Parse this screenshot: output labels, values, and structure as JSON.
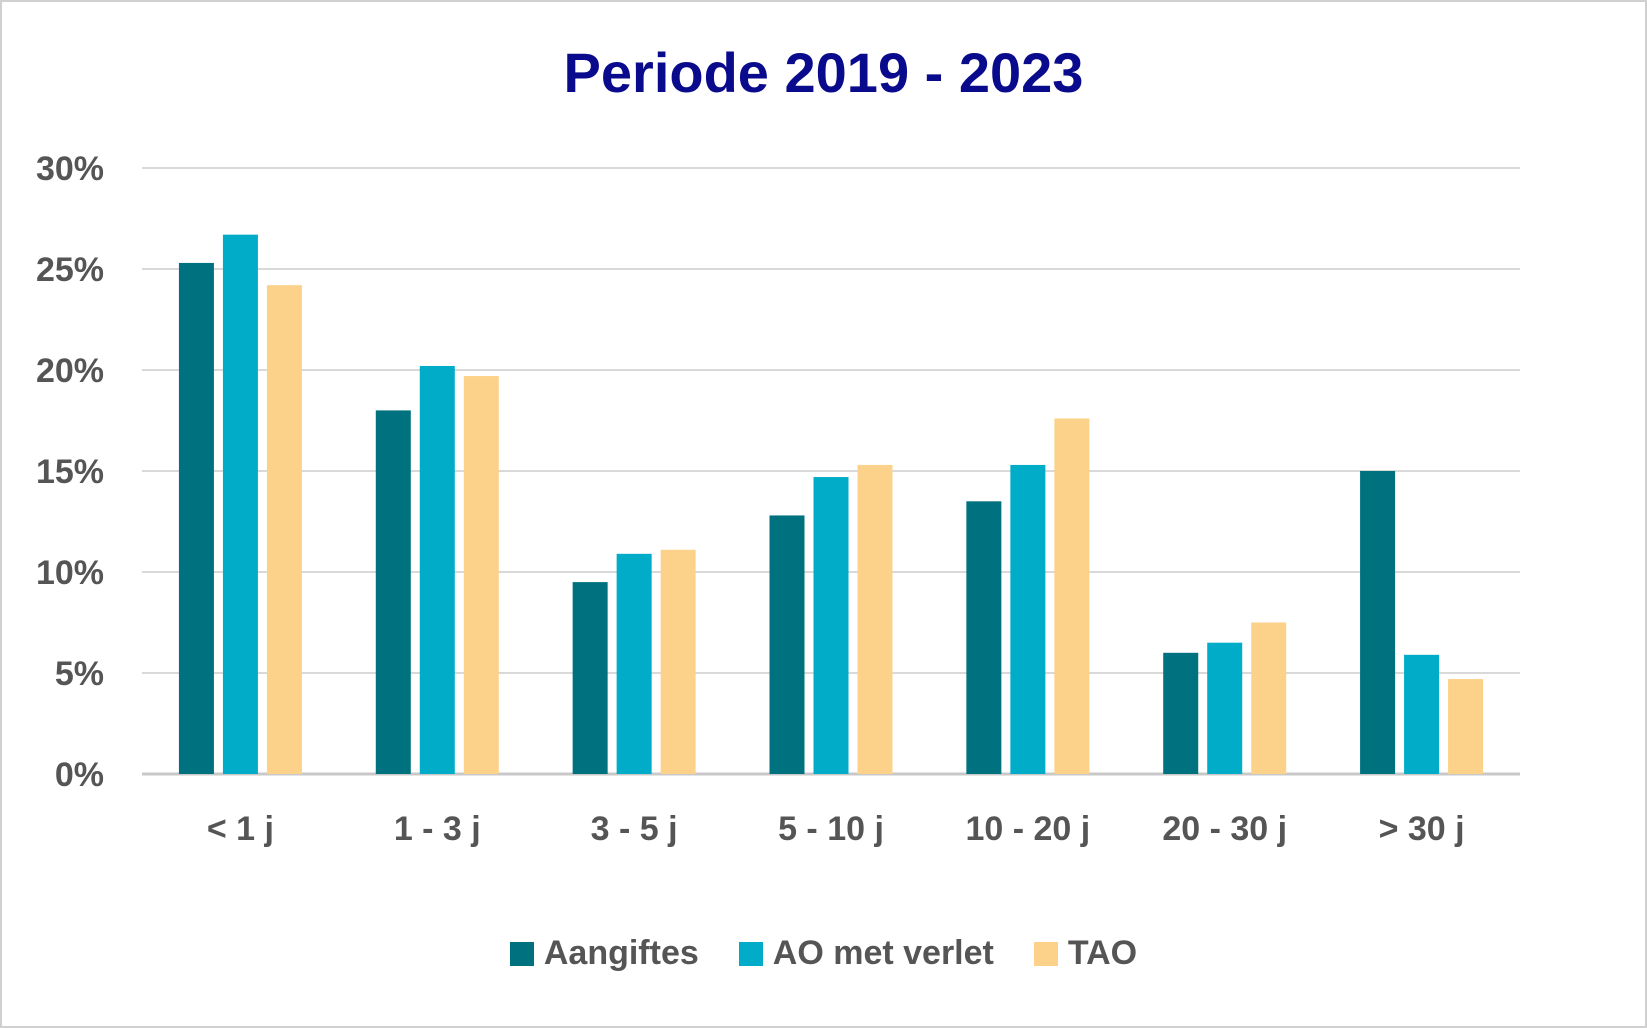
{
  "chart_data": {
    "type": "bar",
    "title": "Periode 2019 - 2023",
    "xlabel": "",
    "ylabel": "",
    "categories": [
      "< 1 j",
      "1 - 3 j",
      "3 - 5 j",
      "5 - 10 j",
      "10 - 20 j",
      "20 - 30 j",
      "> 30 j"
    ],
    "series": [
      {
        "name": "Aangiftes",
        "color": "#00727f",
        "values": [
          25.3,
          18.0,
          9.5,
          12.8,
          13.5,
          6.0,
          15.0
        ]
      },
      {
        "name": "AO met verlet",
        "color": "#00acc8",
        "values": [
          26.7,
          20.2,
          10.9,
          14.7,
          15.3,
          6.5,
          5.9
        ]
      },
      {
        "name": "TAO",
        "color": "#fcd28a",
        "values": [
          24.2,
          19.7,
          11.1,
          15.3,
          17.6,
          7.5,
          4.7
        ]
      }
    ],
    "ylim": [
      0,
      30
    ],
    "yticks": [
      "0%",
      "5%",
      "10%",
      "15%",
      "20%",
      "25%",
      "30%"
    ],
    "ytick_values": [
      0,
      5,
      10,
      15,
      20,
      25,
      30
    ],
    "grid": true,
    "legend": "bottom"
  }
}
